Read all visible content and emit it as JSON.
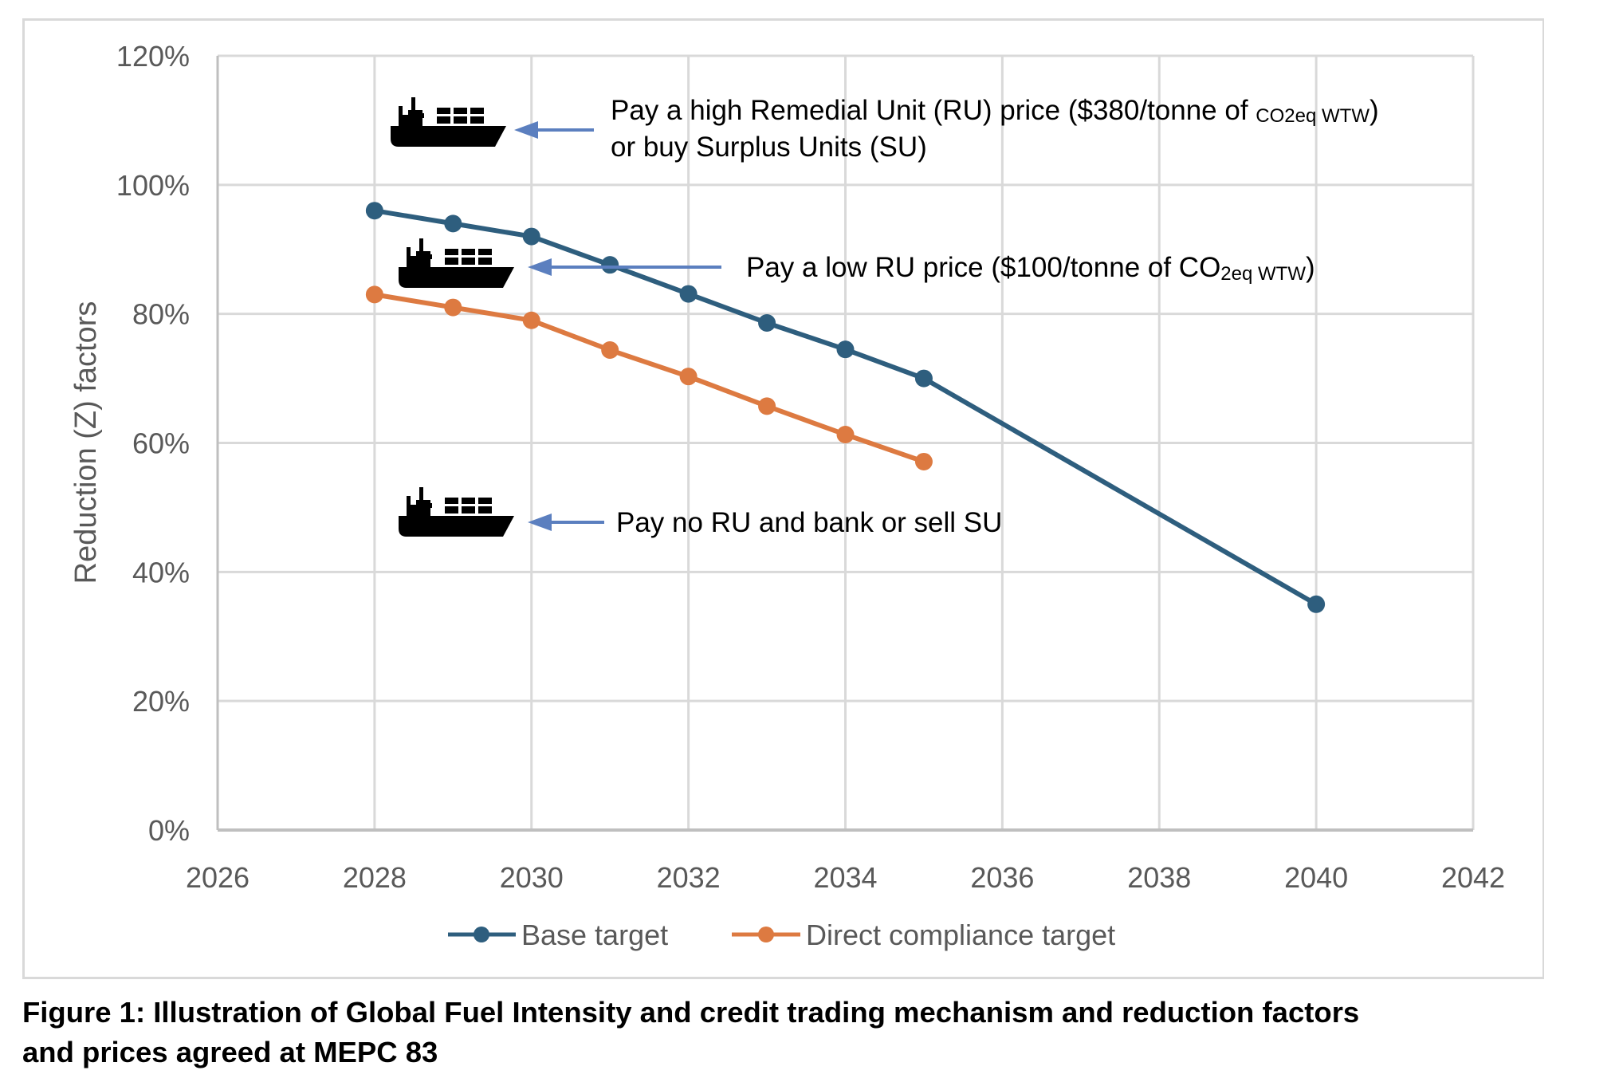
{
  "chart_data": {
    "type": "line",
    "title": "",
    "xlabel": "",
    "ylabel": "Reduction (Z) factors",
    "xlim": [
      2026,
      2042
    ],
    "ylim": [
      0,
      120
    ],
    "x_ticks": [
      2026,
      2028,
      2030,
      2032,
      2034,
      2036,
      2038,
      2040,
      2042
    ],
    "x_tick_labels": [
      "2026",
      "2028",
      "2030",
      "2032",
      "2034",
      "2036",
      "2038",
      "2040",
      "2042"
    ],
    "y_ticks": [
      0,
      20,
      40,
      60,
      80,
      100,
      120
    ],
    "y_tick_labels": [
      "0%",
      "20%",
      "40%",
      "60%",
      "80%",
      "100%",
      "120%"
    ],
    "grid": true,
    "legend_position": "bottom",
    "series": [
      {
        "name": "Base target",
        "color": "#2e5e7e",
        "x": [
          2028,
          2029,
          2030,
          2031,
          2032,
          2033,
          2034,
          2035,
          2040
        ],
        "values": [
          96,
          94,
          92,
          87.6,
          83.1,
          78.6,
          74.5,
          70,
          35
        ]
      },
      {
        "name": "Direct compliance target",
        "color": "#dd7a41",
        "x": [
          2028,
          2029,
          2030,
          2031,
          2032,
          2033,
          2034,
          2035
        ],
        "values": [
          83,
          81,
          79,
          74.4,
          70.3,
          65.7,
          61.3,
          57.1
        ]
      }
    ],
    "annotations": [
      {
        "icon": "cargo-ship-icon",
        "arrow_color": "#5b7fbf",
        "lines": [
          {
            "main": "Pay a high Remedial Unit (RU) price ($380/tonne of ",
            "small": "CO2eq WTW",
            "tail": ")"
          },
          {
            "main": "or buy Surplus Units (SU)",
            "small": "",
            "tail": ""
          }
        ]
      },
      {
        "icon": "cargo-ship-icon",
        "arrow_color": "#5b7fbf",
        "lines": [
          {
            "main": "Pay a low RU price ($100/tonne of CO",
            "small": "2eq WTW",
            "tail": ")"
          }
        ]
      },
      {
        "icon": "cargo-ship-icon",
        "arrow_color": "#5b7fbf",
        "lines": [
          {
            "main": "Pay no RU and bank or sell SU",
            "small": "",
            "tail": ""
          }
        ]
      }
    ]
  },
  "caption": {
    "line1": "Figure 1: Illustration of Global Fuel Intensity and credit trading mechanism and reduction factors",
    "line2": "and prices agreed at MEPC 83"
  },
  "colors": {
    "gridline": "#d9d9d9",
    "axis_text": "#595959",
    "frame": "#d9d9d9"
  }
}
